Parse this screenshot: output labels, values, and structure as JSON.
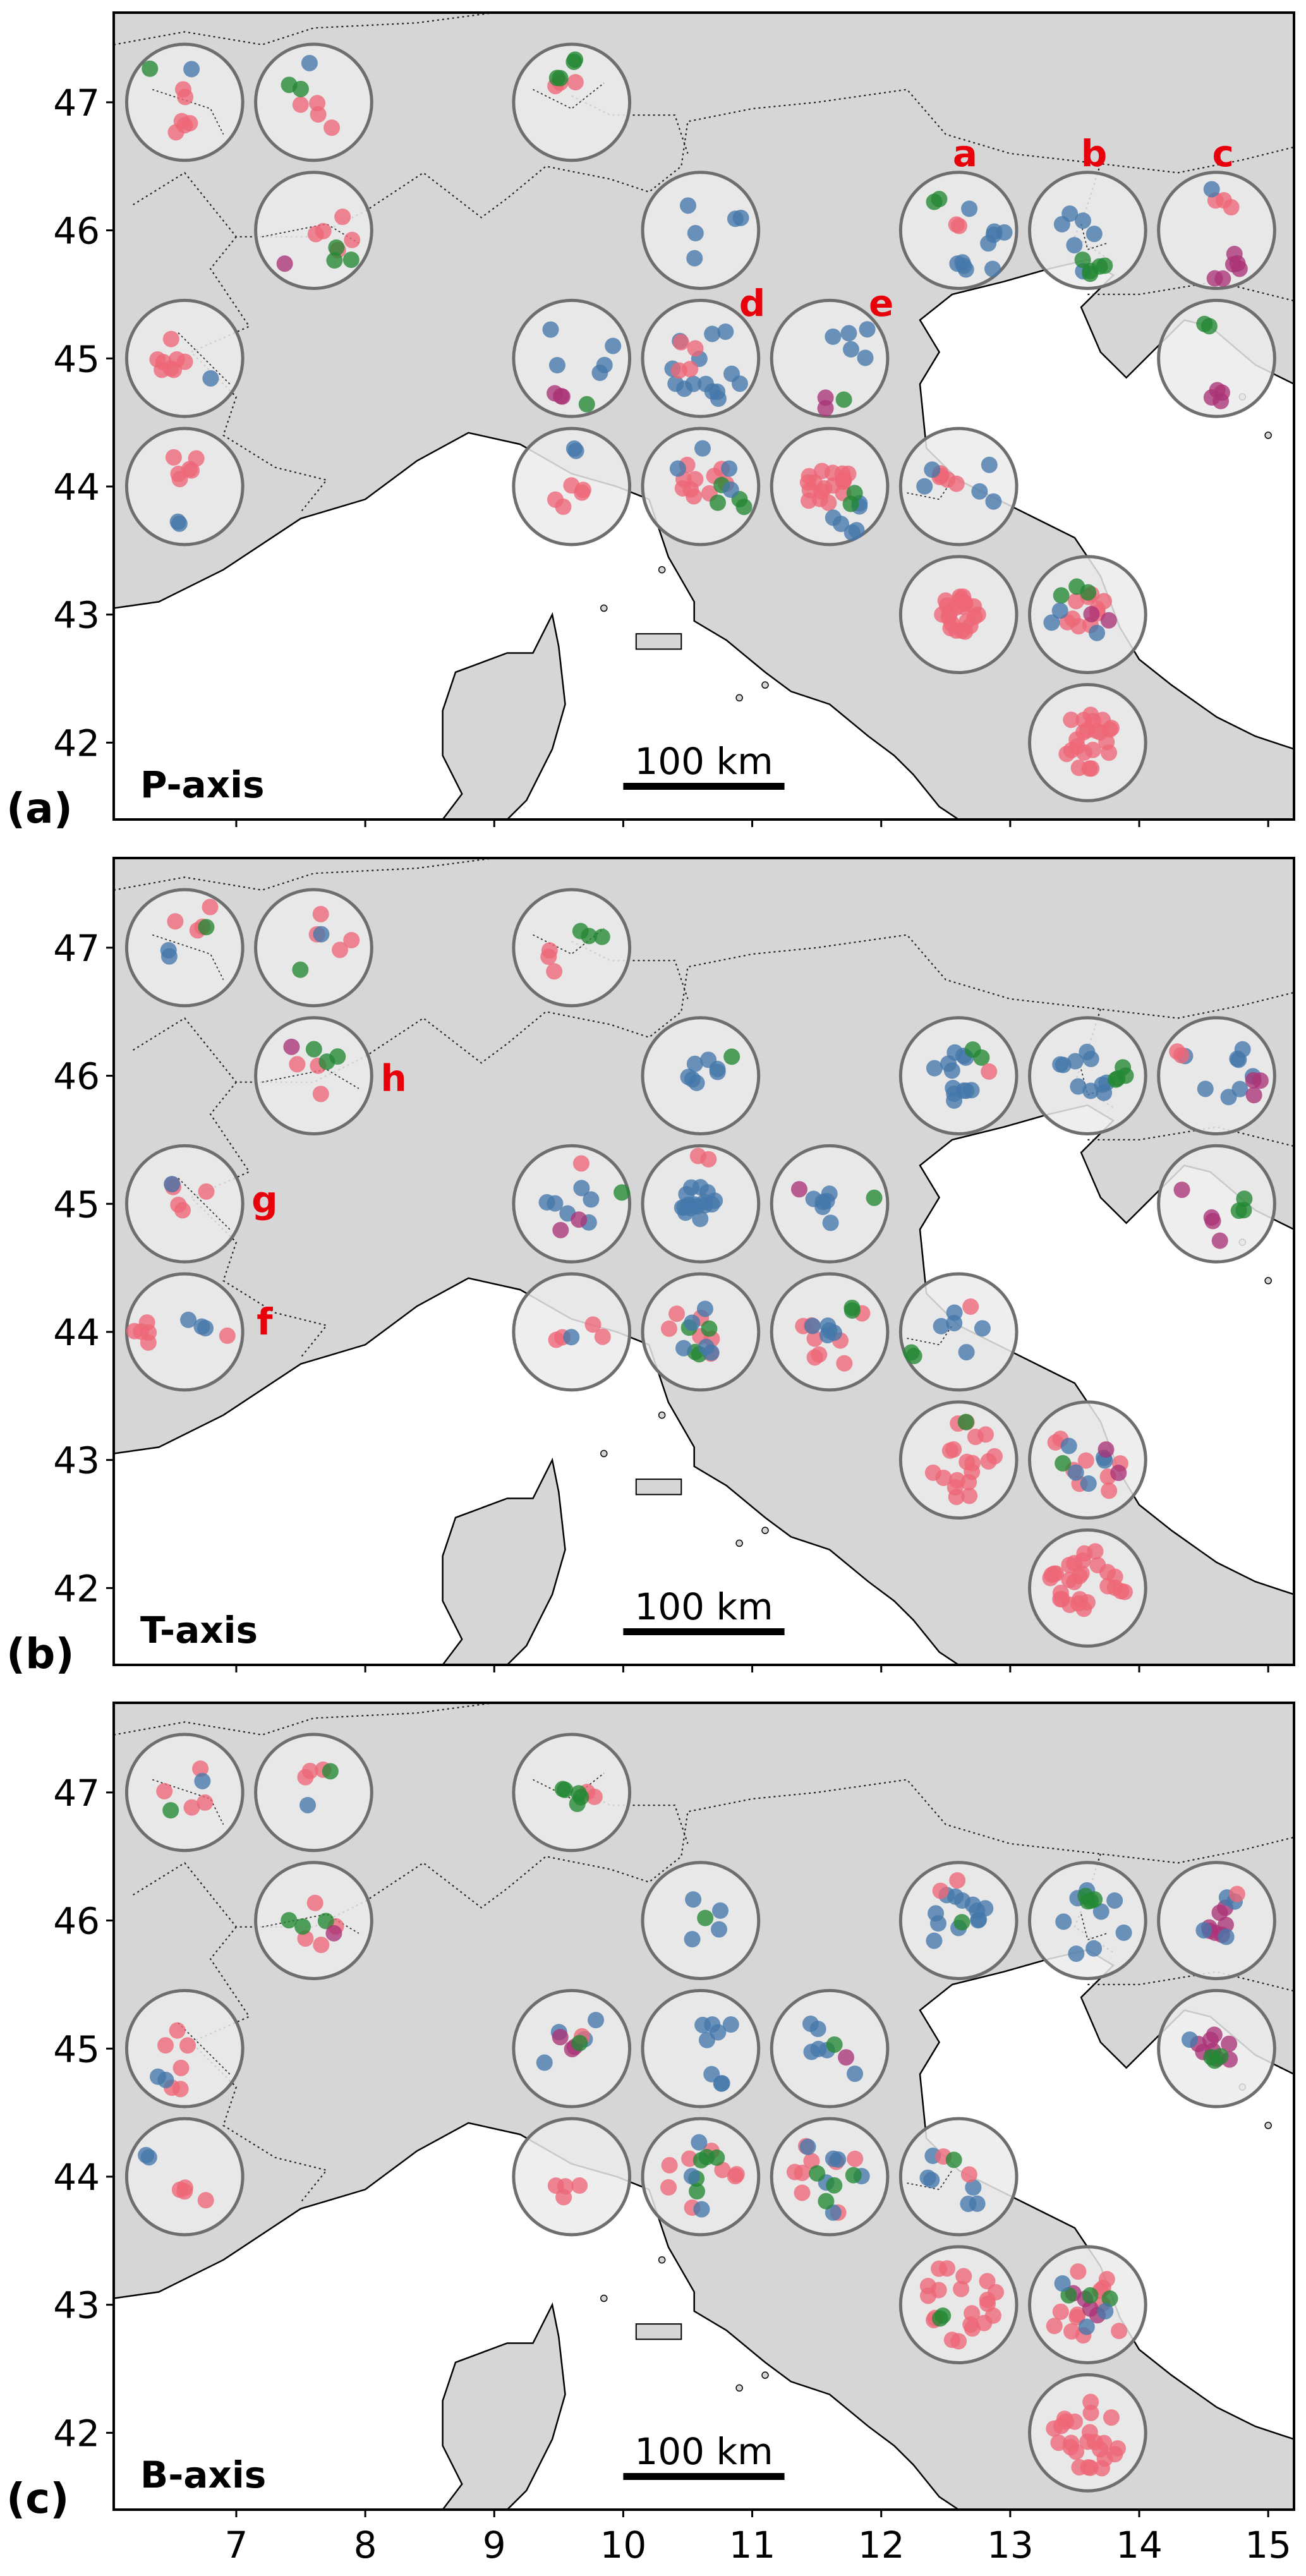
{
  "colors": {
    "land": "#d6d6d6",
    "sea": "#ffffff",
    "bin_fill": "#ebebeb",
    "bin_stroke": "#6e6e6e",
    "red_annotation": "#e8000b",
    "pink": "#ee6677",
    "blue": "#4477aa",
    "green": "#228833",
    "purple": "#aa3377"
  },
  "x_axis": {
    "ticks": [
      "7",
      "8",
      "9",
      "10",
      "11",
      "12",
      "13",
      "14",
      "15"
    ],
    "range": [
      6.05,
      15.2
    ]
  },
  "y_axis": {
    "ticks": [
      "42",
      "43",
      "44",
      "45",
      "46",
      "47"
    ],
    "range": [
      41.4,
      47.7
    ]
  },
  "bins": [
    {
      "lon": 6.6,
      "lat": 47
    },
    {
      "lon": 7.6,
      "lat": 47
    },
    {
      "lon": 9.6,
      "lat": 47
    },
    {
      "lon": 7.6,
      "lat": 46
    },
    {
      "lon": 10.6,
      "lat": 46
    },
    {
      "lon": 12.6,
      "lat": 46
    },
    {
      "lon": 13.6,
      "lat": 46
    },
    {
      "lon": 14.6,
      "lat": 46
    },
    {
      "lon": 6.6,
      "lat": 45
    },
    {
      "lon": 9.6,
      "lat": 45
    },
    {
      "lon": 10.6,
      "lat": 45
    },
    {
      "lon": 11.6,
      "lat": 45
    },
    {
      "lon": 14.6,
      "lat": 45
    },
    {
      "lon": 6.6,
      "lat": 44
    },
    {
      "lon": 9.6,
      "lat": 44
    },
    {
      "lon": 10.6,
      "lat": 44
    },
    {
      "lon": 11.6,
      "lat": 44
    },
    {
      "lon": 12.6,
      "lat": 44
    },
    {
      "lon": 12.6,
      "lat": 43
    },
    {
      "lon": 13.6,
      "lat": 43
    },
    {
      "lon": 13.6,
      "lat": 42
    }
  ],
  "panels": [
    {
      "letter": "(a)",
      "title": "P-axis",
      "scalebar": "100 km",
      "annotations": [
        {
          "text": "a",
          "lon": 12.65,
          "lat": 46.6
        },
        {
          "text": "b",
          "lon": 13.65,
          "lat": 46.6
        },
        {
          "text": "c",
          "lon": 14.65,
          "lat": 46.6
        },
        {
          "text": "d",
          "lon": 11.0,
          "lat": 45.43
        },
        {
          "text": "e",
          "lon": 12.0,
          "lat": 45.43
        }
      ]
    },
    {
      "letter": "(b)",
      "title": "T-axis",
      "scalebar": "100 km",
      "annotations": [
        {
          "text": "h",
          "lon": 8.22,
          "lat": 45.98
        },
        {
          "text": "g",
          "lon": 7.22,
          "lat": 45.03
        },
        {
          "text": "f",
          "lon": 7.22,
          "lat": 44.08
        }
      ]
    },
    {
      "letter": "(c)",
      "title": "B-axis",
      "scalebar": "100 km",
      "annotations": []
    }
  ]
}
